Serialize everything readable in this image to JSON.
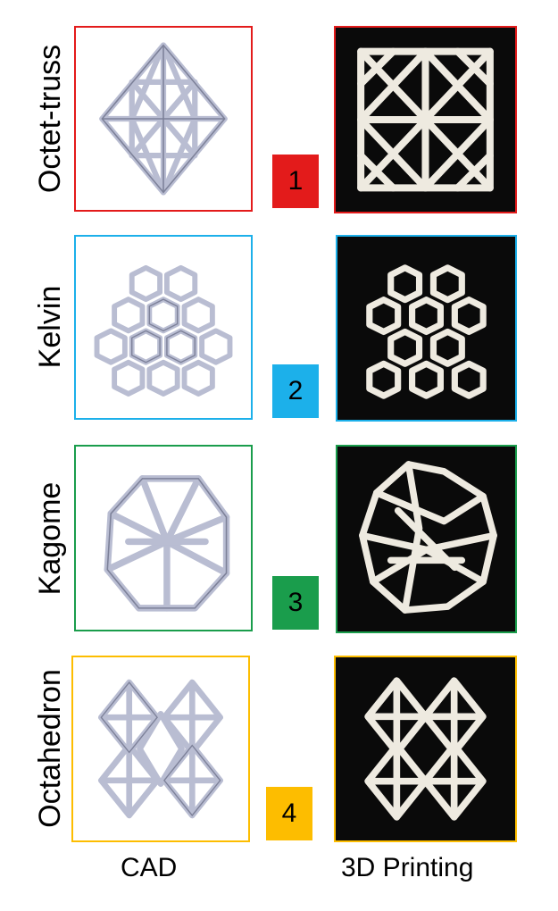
{
  "rows": [
    {
      "label": "Octet-truss",
      "number": "1",
      "color": "#e31b1b"
    },
    {
      "label": "Kelvin",
      "number": "2",
      "color": "#1cb0ea"
    },
    {
      "label": "Kagome",
      "number": "3",
      "color": "#1a9d4c"
    },
    {
      "label": "Octahedron",
      "number": "4",
      "color": "#fdbd00"
    }
  ],
  "columns": {
    "cad": "CAD",
    "printing": "3D Printing"
  },
  "colors": {
    "cad_strut": "#b9bdd2",
    "printed_strut": "#eeeae0",
    "print_background": "#0a0a0a"
  }
}
